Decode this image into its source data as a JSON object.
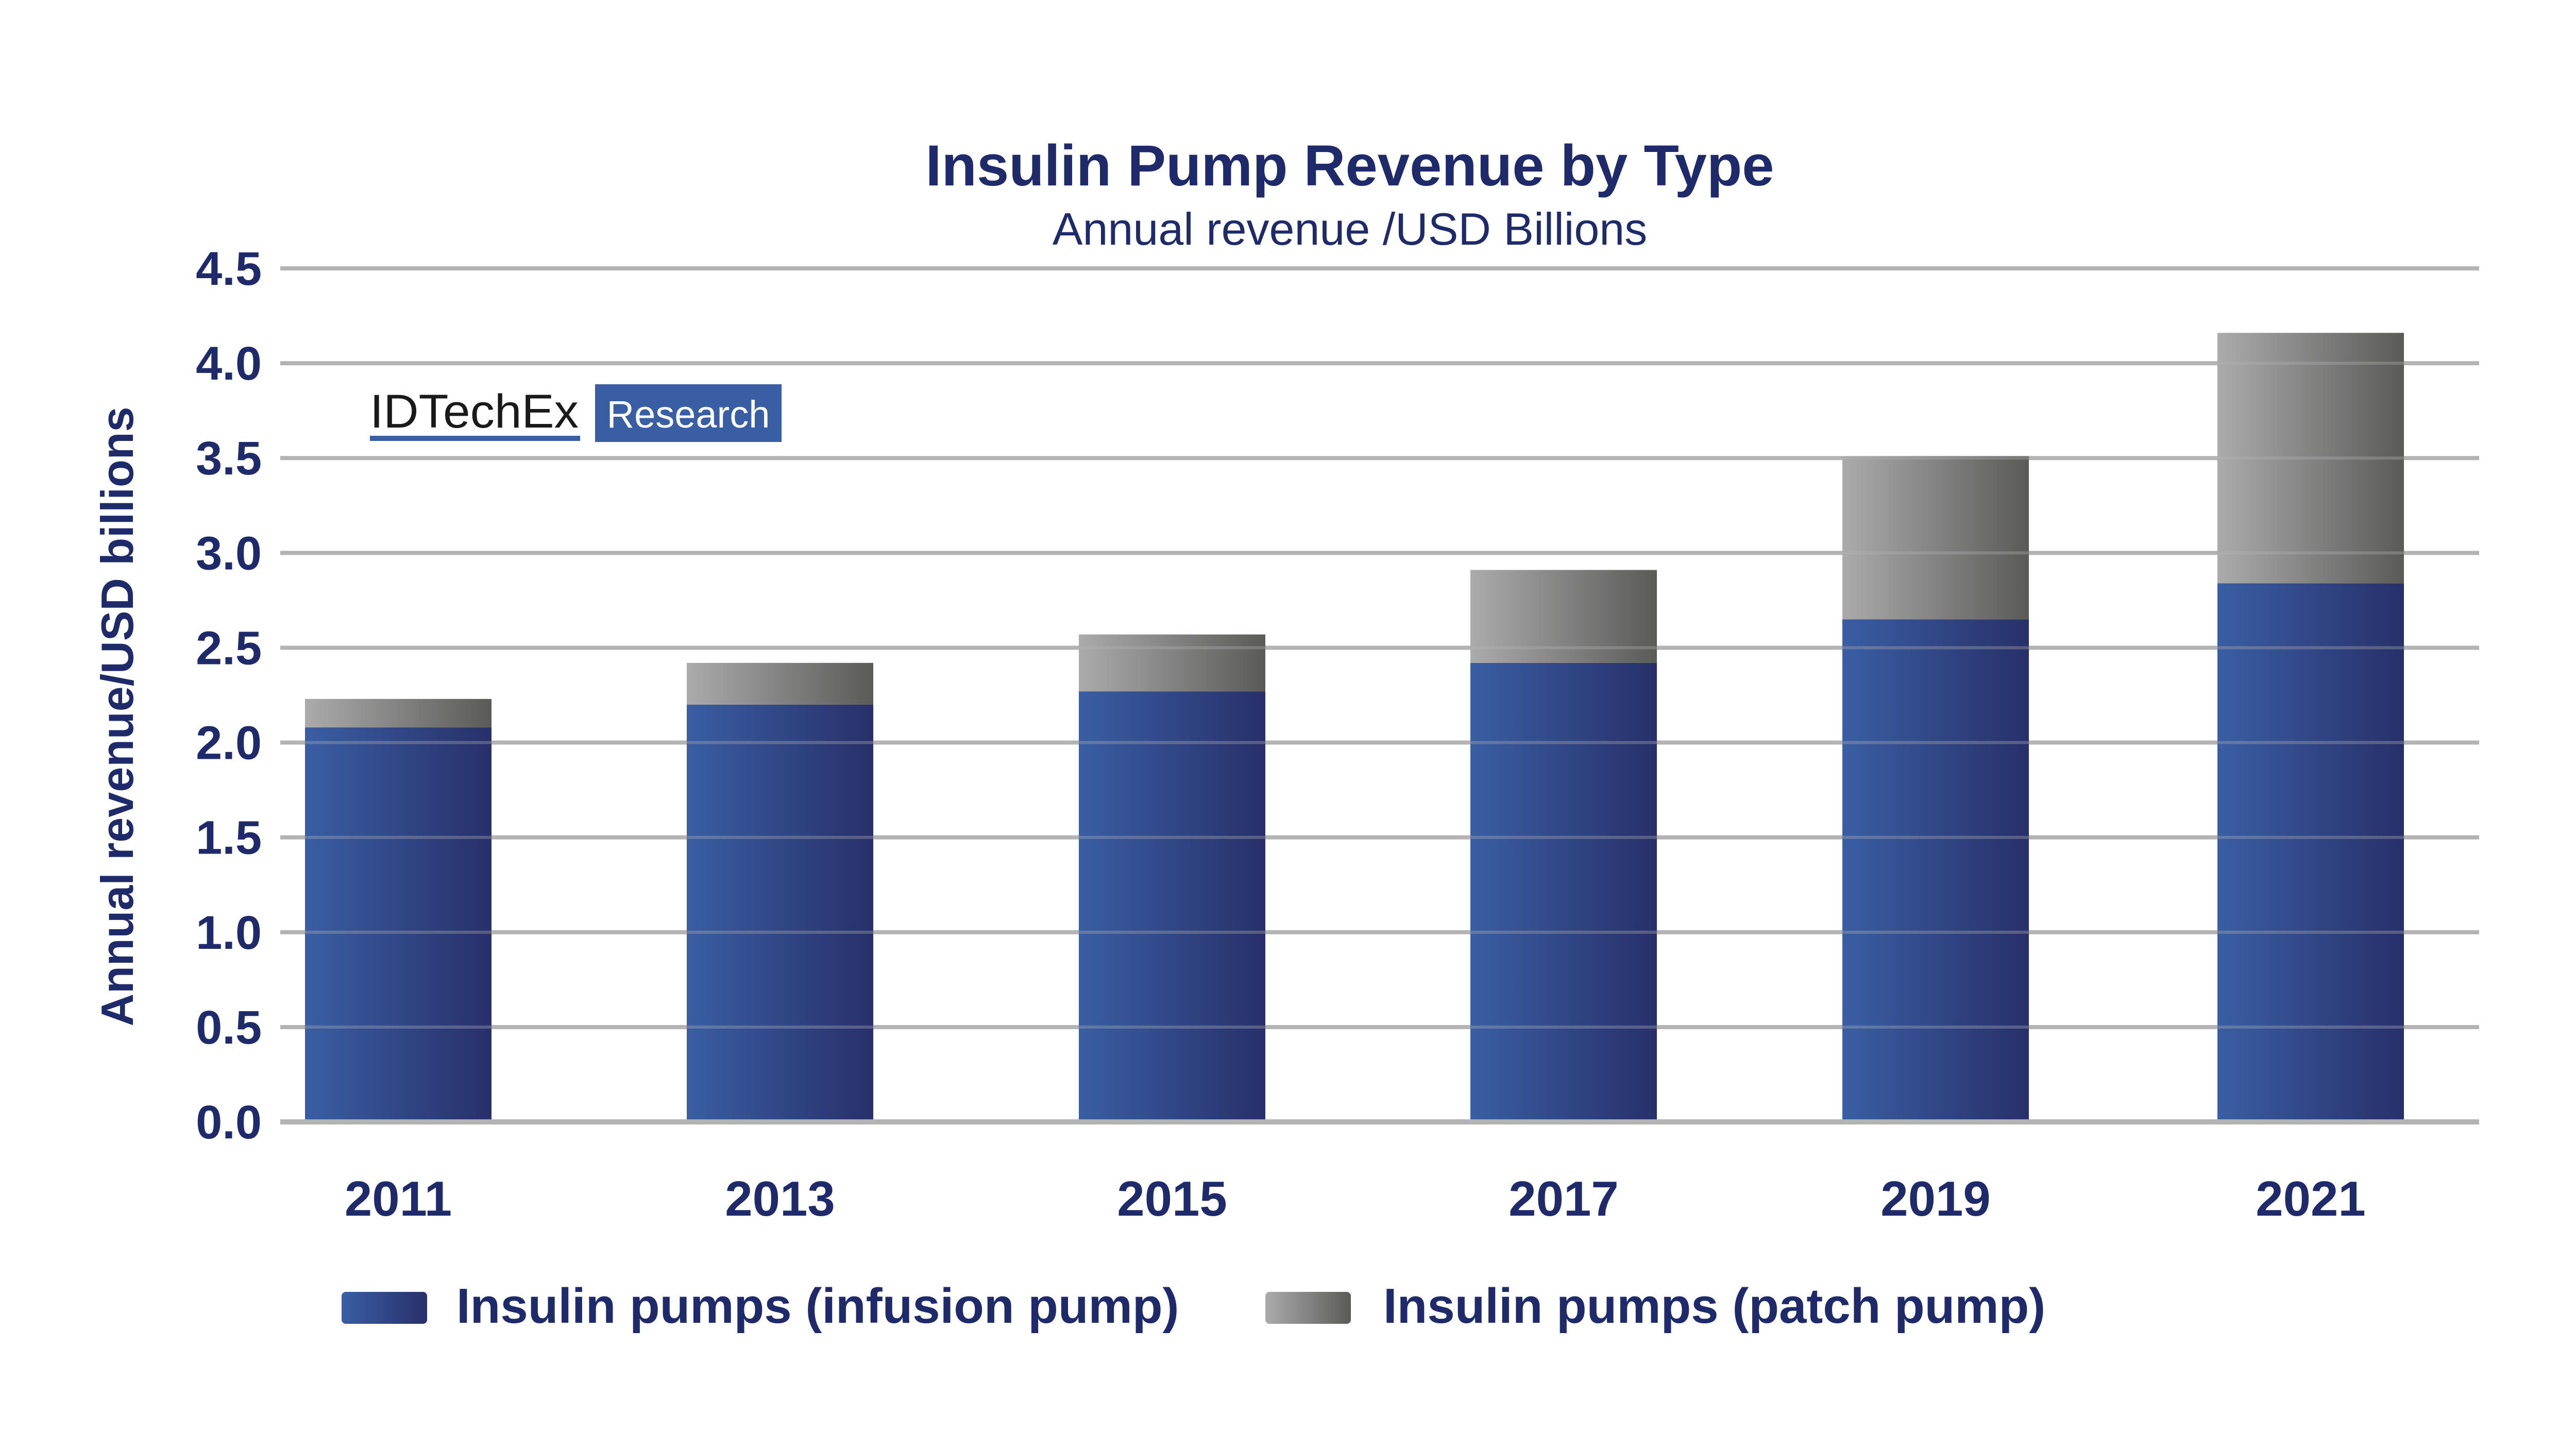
{
  "logo": {
    "brand": "IDTechEx",
    "tag": "Research"
  },
  "colors": {
    "title": "#1f2a6b",
    "infusion": "#3a5ea3",
    "patch": "#9a9a9a",
    "grid": "#b3b3b3"
  },
  "chart_data": {
    "type": "bar",
    "stacked": true,
    "title": "Insulin Pump Revenue by Type",
    "subtitle": "Annual revenue /USD Billions",
    "xlabel": "",
    "ylabel": "Annual revenue/USD billions",
    "ylim": [
      0,
      4.5
    ],
    "yticks": [
      "0.0",
      "0.5",
      "1.0",
      "1.5",
      "2.0",
      "2.5",
      "3.0",
      "3.5",
      "4.0",
      "4.5"
    ],
    "grid": true,
    "legend_position": "bottom",
    "categories": [
      "2011",
      "2013",
      "2015",
      "2017",
      "2019",
      "2021"
    ],
    "series": [
      {
        "name": "Insulin pumps (infusion pump)",
        "values": [
          2.08,
          2.2,
          2.27,
          2.42,
          2.65,
          2.84
        ]
      },
      {
        "name": "Insulin pumps (patch pump)",
        "values": [
          0.15,
          0.22,
          0.3,
          0.49,
          0.86,
          1.32
        ]
      }
    ]
  }
}
